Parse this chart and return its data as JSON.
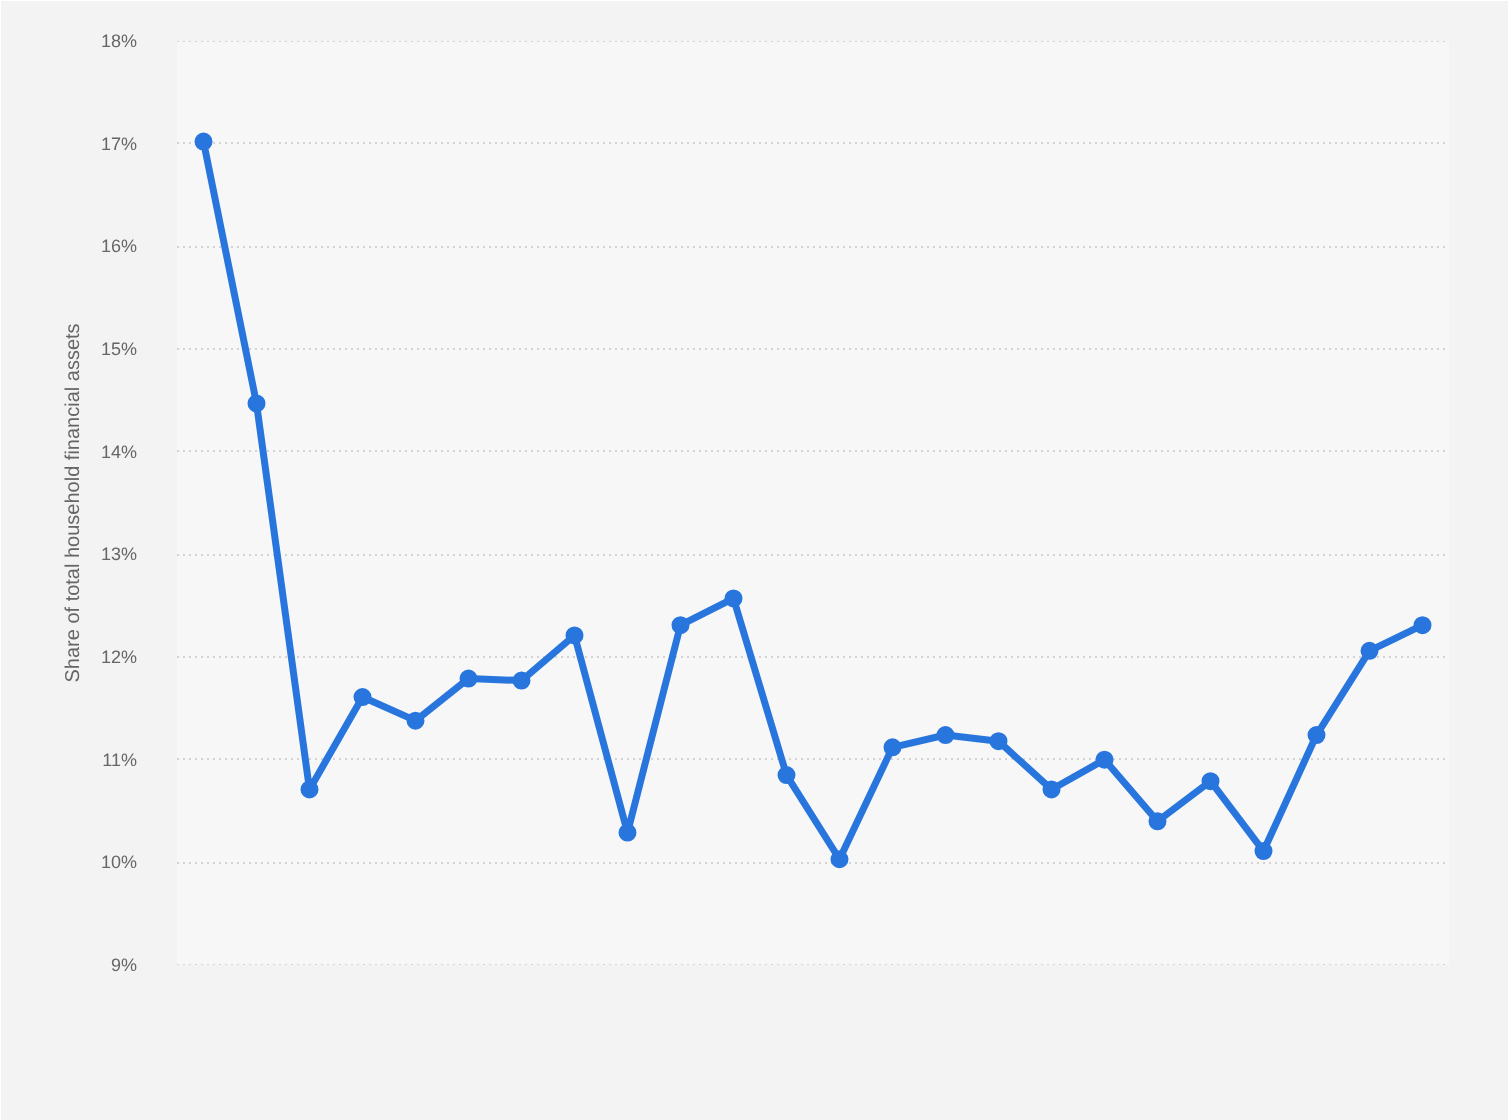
{
  "chart_data": {
    "type": "line",
    "ylabel": "Share of total household financial assets",
    "categories": [
      null,
      null,
      null,
      null,
      null,
      null,
      null,
      null,
      null,
      null,
      null,
      null,
      null,
      null,
      null,
      null,
      null,
      null,
      null,
      null,
      null,
      null,
      null,
      null
    ],
    "series": [
      {
        "color": "#2876dd",
        "values": [
          17.02,
          14.47,
          10.71,
          11.61,
          11.38,
          11.79,
          11.77,
          12.21,
          10.29,
          12.31,
          12.57,
          10.85,
          10.03,
          11.12,
          11.24,
          11.18,
          10.71,
          11.0,
          10.4,
          10.79,
          10.11,
          11.24,
          12.06,
          12.31
        ]
      }
    ],
    "ylim": [
      9,
      18
    ],
    "yticks": [
      {
        "value": 9,
        "label": "9%"
      },
      {
        "value": 10,
        "label": "10%"
      },
      {
        "value": 11,
        "label": "11%"
      },
      {
        "value": 12,
        "label": "12%"
      },
      {
        "value": 13,
        "label": "13%"
      },
      {
        "value": 14,
        "label": "14%"
      },
      {
        "value": 15,
        "label": "15%"
      },
      {
        "value": 16,
        "label": "16%"
      },
      {
        "value": 17,
        "label": "17%"
      },
      {
        "value": 18,
        "label": "18%"
      }
    ],
    "grid": "y",
    "marker": "circle",
    "line_style": "solid",
    "tick_labels": "y"
  }
}
